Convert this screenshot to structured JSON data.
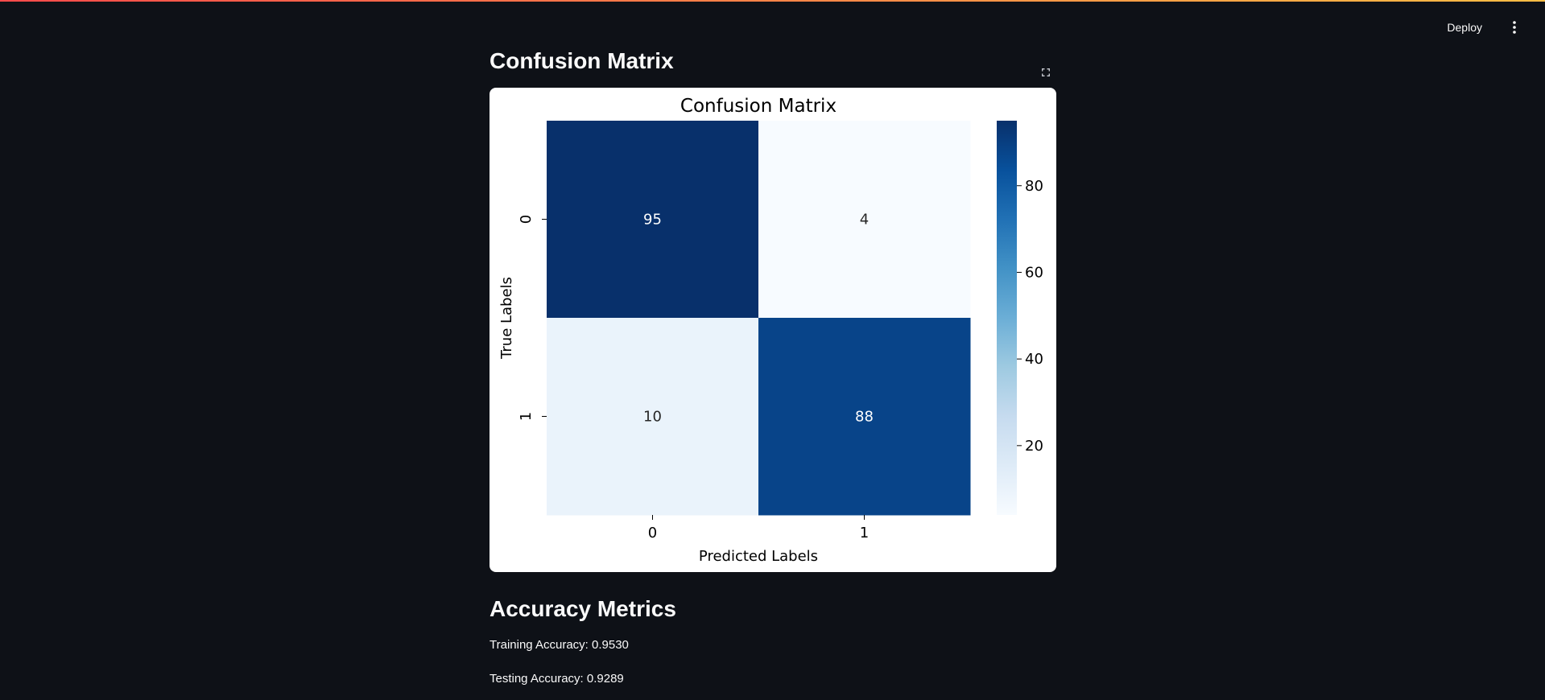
{
  "header": {
    "deploy_label": "Deploy",
    "menu_icon": "vertical-dots-icon"
  },
  "confusion_section": {
    "title": "Confusion Matrix",
    "fullscreen_icon": "fullscreen-icon"
  },
  "chart_data": {
    "type": "heatmap",
    "title": "Confusion Matrix",
    "xlabel": "Predicted Labels",
    "ylabel": "True Labels",
    "x_categories": [
      "0",
      "1"
    ],
    "y_categories": [
      "0",
      "1"
    ],
    "matrix": [
      [
        95,
        4
      ],
      [
        10,
        88
      ]
    ],
    "colormap": "Blues",
    "colorbar": {
      "ticks": [
        20,
        40,
        60,
        80
      ],
      "range": [
        4,
        95
      ]
    }
  },
  "metrics_section": {
    "title": "Accuracy Metrics",
    "training": "Training Accuracy: 0.9530",
    "testing": "Testing Accuracy: 0.9289"
  },
  "colors": {
    "background": "#0e1117",
    "text": "#fafafa",
    "figure_background": "#ffffff",
    "cmap_low": "#f7fbff",
    "cmap_high": "#08306b"
  }
}
